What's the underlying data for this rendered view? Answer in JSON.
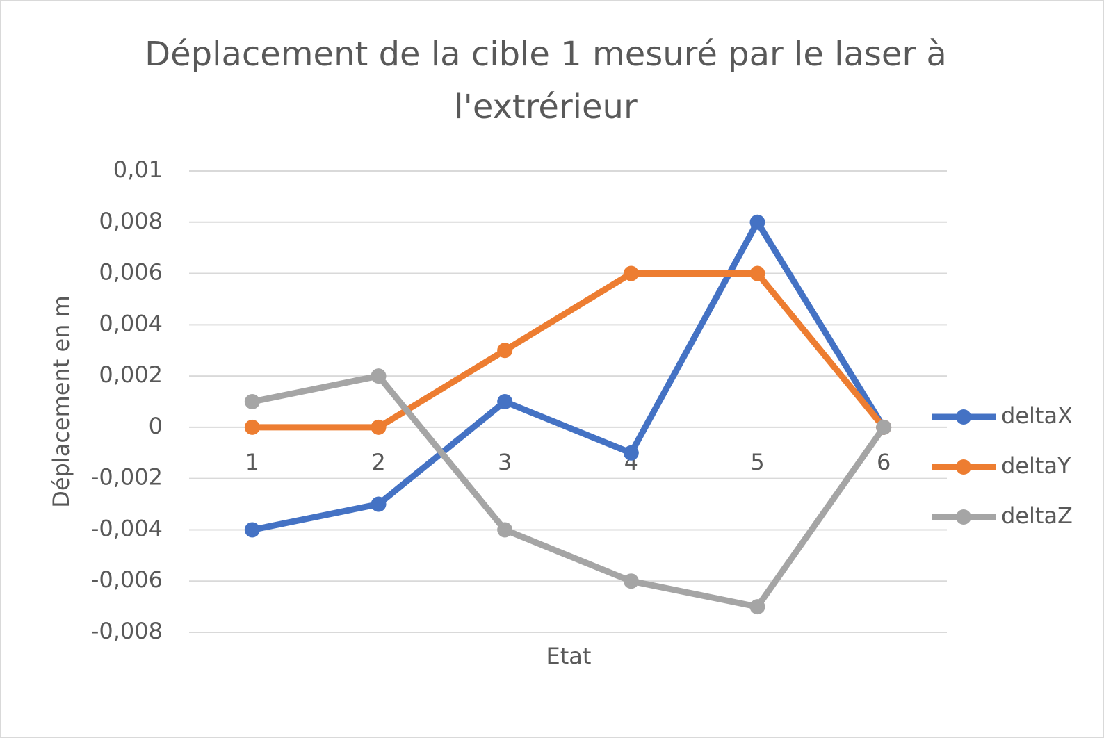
{
  "chart_data": {
    "type": "line",
    "title": "Déplacement de la cible 1 mesuré par le laser à l'extrérieur",
    "x_label": "Etat",
    "y_label": "Déplacement en m",
    "categories": [
      "1",
      "2",
      "3",
      "4",
      "5",
      "6"
    ],
    "series": [
      {
        "name": "deltaX",
        "color": "#4472c4",
        "values": [
          -0.004,
          -0.003,
          0.001,
          -0.001,
          0.008,
          0
        ]
      },
      {
        "name": "deltaY",
        "color": "#ed7d31",
        "values": [
          0,
          0,
          0.003,
          0.006,
          0.006,
          0
        ]
      },
      {
        "name": "deltaZ",
        "color": "#a5a5a5",
        "values": [
          0.001,
          0.002,
          -0.004,
          -0.006,
          -0.007,
          0
        ]
      }
    ],
    "ylim": [
      -0.008,
      0.01
    ],
    "yticks": [
      {
        "value": -0.008,
        "label": "-0,008"
      },
      {
        "value": -0.006,
        "label": "-0,006"
      },
      {
        "value": -0.004,
        "label": "-0,004"
      },
      {
        "value": -0.002,
        "label": "-0,002"
      },
      0,
      {
        "value": 0.002,
        "label": "0,002"
      },
      {
        "value": 0.004,
        "label": "0,004"
      },
      {
        "value": 0.006,
        "label": "0,006"
      },
      {
        "value": 0.008,
        "label": "0,008"
      },
      {
        "value": 0.01,
        "label": "0,01"
      }
    ],
    "grid": true,
    "legend": "right"
  }
}
